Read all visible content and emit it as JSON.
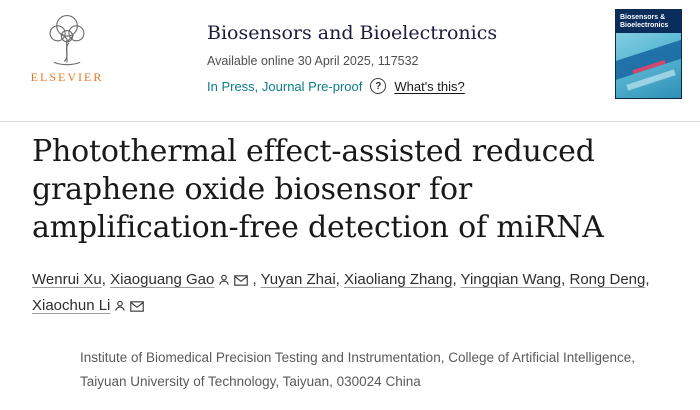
{
  "header": {
    "publisher_wordmark": "ELSEVIER",
    "journal_title": "Biosensors and Bioelectronics",
    "available_online": "Available online 30 April 2025, 117532",
    "in_press_status": "In Press, Journal Pre-proof",
    "help_glyph": "?",
    "whats_this_label": "What's this?",
    "cover_thumbnail": {
      "title_line1": "Biosensors &",
      "title_line2": "Bioelectronics"
    }
  },
  "article": {
    "title": "Photothermal effect-assisted reduced graphene oxide biosensor for amplification-free detection of miRNA",
    "authors": [
      {
        "name": "Wenrui Xu",
        "icons": [],
        "separator": ", "
      },
      {
        "name": "Xiaoguang Gao",
        "icons": [
          "person",
          "envelope"
        ],
        "separator": " , "
      },
      {
        "name": "Yuyan Zhai",
        "icons": [],
        "separator": ", "
      },
      {
        "name": "Xiaoliang Zhang",
        "icons": [],
        "separator": ", "
      },
      {
        "name": "Yingqian Wang",
        "icons": [],
        "separator": ", "
      },
      {
        "name": "Rong Deng",
        "icons": [],
        "separator": ", "
      },
      {
        "name": "Xiaochun Li",
        "icons": [
          "person",
          "envelope"
        ],
        "separator": ""
      }
    ],
    "affiliation": "Institute of Biomedical Precision Testing and Instrumentation, College of Artificial Intelligence, Taiyuan University of Technology, Taiyuan, 030024 China"
  },
  "colors": {
    "accent_teal": "#0c7d8a",
    "elsevier_orange": "#e87722",
    "journal_title_ink": "#1b1b3d",
    "cover_navy": "#0b2d5c"
  }
}
